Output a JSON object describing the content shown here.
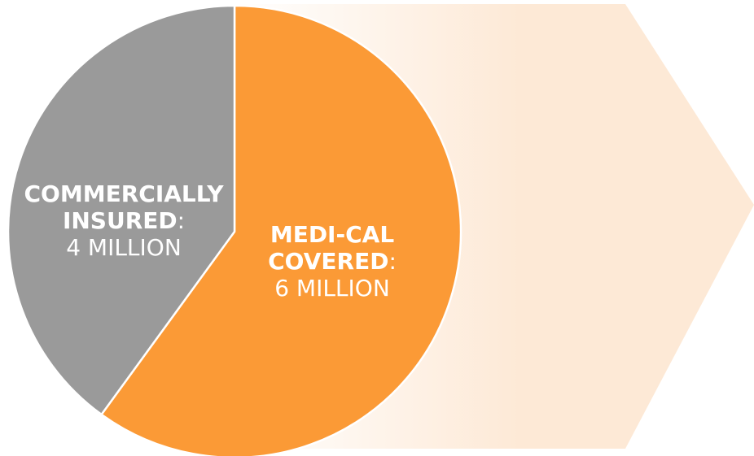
{
  "chart_data": {
    "type": "pie",
    "slices": [
      {
        "name_line1": "COMMERCIALLY",
        "name_line2": "INSURED",
        "suffix": ":",
        "value_label": "4 MILLION",
        "value": 4,
        "color": "#9a9a9a"
      },
      {
        "name_line1": "MEDI-CAL",
        "name_line2": "COVERED",
        "suffix": ":",
        "value_label": "6 MILLION",
        "value": 6,
        "color": "#fb9a36"
      }
    ],
    "title": "",
    "legend": "none"
  },
  "decor": {
    "arrow_color": "#fde9d6",
    "label_color": "#ffffff",
    "separator_color": "#ffffff"
  }
}
